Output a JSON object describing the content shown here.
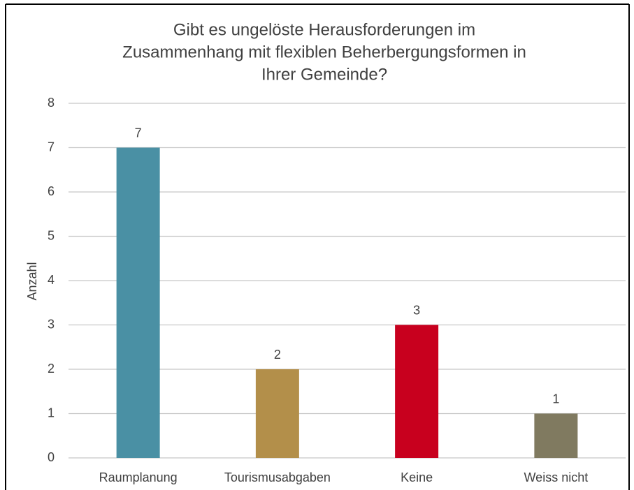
{
  "chart_data": {
    "type": "bar",
    "title": [
      "Gibt es ungelöste Herausforderungen im",
      "Zusammenhang mit flexiblen Beherbergungsformen in",
      "Ihrer Gemeinde?"
    ],
    "y_label": "Anzahl",
    "categories": [
      "Raumplanung",
      "Tourismusabgaben",
      "Keine",
      "Weiss nicht"
    ],
    "values": [
      7,
      2,
      3,
      1
    ],
    "colors": [
      "#4a90a4",
      "#b38f4a",
      "#c8001e",
      "#807a60"
    ],
    "ylim": [
      0,
      8
    ],
    "yticks": [
      0,
      1,
      2,
      3,
      4,
      5,
      6,
      7,
      8
    ],
    "grid": true
  }
}
